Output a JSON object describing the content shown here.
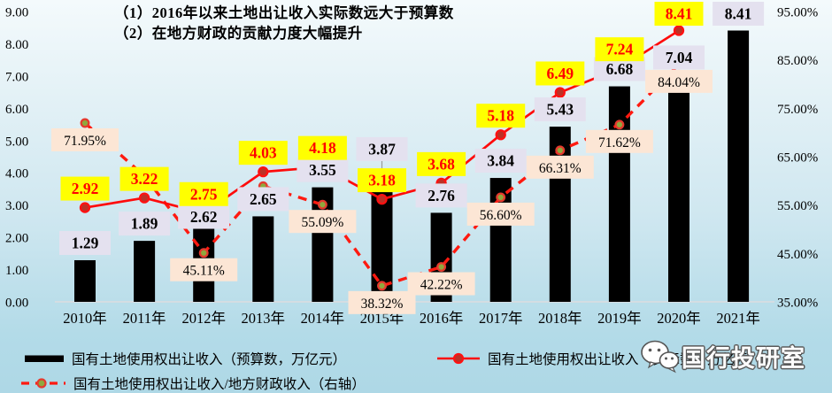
{
  "chart_data": {
    "type": "combo",
    "annotations": [
      "（1）2016年以来土地出让收入实际数远大于预算数",
      "（2）在地方财政的贡献力度大幅提升"
    ],
    "categories": [
      "2010年",
      "2011年",
      "2012年",
      "2013年",
      "2014年",
      "2015年",
      "2016年",
      "2017年",
      "2018年",
      "2019年",
      "2020年",
      "2021年"
    ],
    "series": [
      {
        "name": "国有土地使用权出让收入（预算数，万亿元）",
        "type": "bar",
        "axis": "left",
        "color": "#000000",
        "values": [
          1.29,
          1.89,
          2.62,
          2.65,
          3.55,
          3.87,
          2.76,
          3.84,
          5.43,
          6.68,
          7.04,
          8.41
        ],
        "label_style": "lavender"
      },
      {
        "name": "国有土地使用权出让收入（实际数，万亿元）",
        "type": "line",
        "axis": "left",
        "color": "#fe0b0b",
        "marker_fill": "#bd3126",
        "values": [
          2.92,
          3.22,
          2.75,
          4.03,
          4.18,
          3.18,
          3.68,
          5.18,
          6.49,
          7.24,
          8.41,
          null
        ],
        "label_style": "yellow"
      },
      {
        "name": "国有土地使用权出让收入/地方财政收入（右轴）",
        "type": "dashed-line",
        "axis": "right",
        "color": "#ff1a10",
        "marker_fill": "#8fa83d",
        "values": [
          71.95,
          61.0,
          45.11,
          58.9,
          55.09,
          38.32,
          42.22,
          56.6,
          66.31,
          71.62,
          84.04,
          null
        ],
        "labels": [
          "71.95%",
          null,
          "45.11%",
          null,
          "55.09%",
          "38.32%",
          "42.22%",
          "56.60%",
          "66.31%",
          "71.62%",
          "84.04%",
          null
        ],
        "label_style": "peach"
      }
    ],
    "left_axis": {
      "min": 0,
      "max": 9,
      "ticks": [
        "9.00",
        "8.00",
        "7.00",
        "6.00",
        "5.00",
        "4.00",
        "3.00",
        "2.00",
        "1.00",
        "0.00"
      ]
    },
    "right_axis": {
      "min": 35,
      "max": 95,
      "unit": "%",
      "ticks": [
        "95.00%",
        "85.00%",
        "75.00%",
        "65.00%",
        "55.00%",
        "45.00%",
        "35.00%"
      ]
    },
    "label_colors": {
      "yellow_bg": "#ffff00",
      "yellow_text": "#ff0000",
      "lavender_bg": "#e4e1ef",
      "lavender_text": "#000000",
      "peach_bg": "#fce6d5",
      "peach_text": "#000000"
    },
    "legend_position": "bottom"
  },
  "watermark": {
    "text": "国行投研室",
    "icon": "wechat-icon"
  }
}
